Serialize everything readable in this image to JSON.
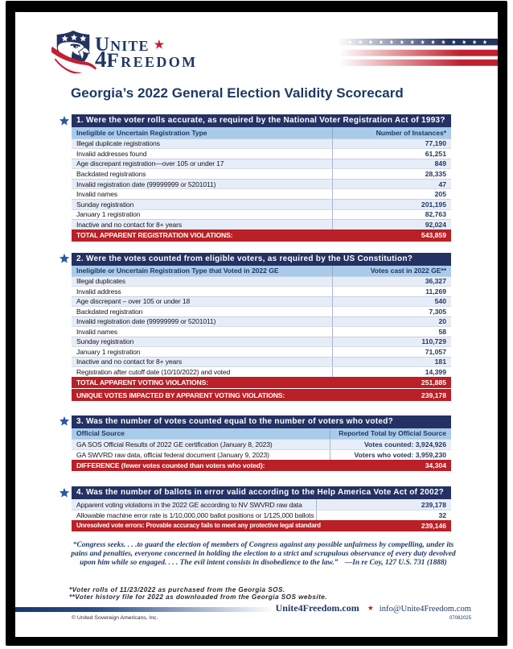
{
  "title": "Georgia’s 2022 General Election Validity Scorecard",
  "logo": {
    "word1": "Unite",
    "star": "★",
    "digit": "4",
    "word2": "Freedom"
  },
  "colors": {
    "navy": "#243263",
    "red_bar": "#b92027",
    "header_blue": "#a9cbea",
    "stripe_blue": "#e7edf8",
    "accent_star_blue": "#2b57a5",
    "logo_red": "#c02231"
  },
  "sections": [
    {
      "heading": "1. Were the voter rolls accurate, as required by the National Voter Registration Act of 1993?",
      "col1": "Ineligible or Uncertain Registration Type",
      "col2": "Number of Instances*",
      "rows": [
        {
          "label": "Illegal duplicate registrations",
          "value": "77,190"
        },
        {
          "label": "Invalid addresses found",
          "value": "61,251"
        },
        {
          "label": "Age discrepant registration—over 105 or under 17",
          "value": "849"
        },
        {
          "label": "Backdated registrations",
          "value": "28,335"
        },
        {
          "label": "Invalid registration date (99999999 or 5201011)",
          "value": "47"
        },
        {
          "label": "Invalid names",
          "value": "205"
        },
        {
          "label": "Sunday registration",
          "value": "201,195"
        },
        {
          "label": "January 1 registration",
          "value": "82,763"
        },
        {
          "label": "Inactive and no contact for 8+ years",
          "value": "92,024"
        }
      ],
      "totals": [
        {
          "label": "TOTAL APPARENT REGISTRATION VIOLATIONS:",
          "value": "543,859"
        }
      ]
    },
    {
      "heading": "2. Were the votes counted from eligible voters, as required by the US Constitution?",
      "col1": "Ineligible or Uncertain Registration Type that Voted in 2022 GE",
      "col2": "Votes cast in 2022 GE**",
      "rows": [
        {
          "label": "Illegal duplicates",
          "value": "36,327"
        },
        {
          "label": "Invalid address",
          "value": "11,269"
        },
        {
          "label": "Age discrepant – over 105 or under 18",
          "value": "540"
        },
        {
          "label": "Backdated registration",
          "value": "7,305"
        },
        {
          "label": "Invalid registration date (99999999 or 5201011)",
          "value": "20"
        },
        {
          "label": "Invalid names",
          "value": "58"
        },
        {
          "label": "Sunday registration",
          "value": "110,729"
        },
        {
          "label": "January 1 registration",
          "value": "71,057"
        },
        {
          "label": "Inactive and no contact for 8+ years",
          "value": "181"
        },
        {
          "label": "Registration after cutoff date (10/10/2022) and voted",
          "value": "14,399"
        }
      ],
      "totals": [
        {
          "label": "TOTAL APPARENT VOTING VIOLATIONS:",
          "value": "251,885"
        },
        {
          "label": "UNIQUE VOTES IMPACTED BY APPARENT VOTING VIOLATIONS:",
          "value": "239,178"
        }
      ]
    },
    {
      "heading": "3. Was the number of votes counted equal to the number of voters who voted?",
      "col1": "Official Source",
      "col2": "Reported Total by Official Source",
      "rows": [
        {
          "label": "GA SOS Official Results of 2022 GE certification  (January 8, 2023)",
          "value": "Votes counted:  3,924,926"
        },
        {
          "label": "GA SWVRD raw data, official federal document (January 9, 2023)",
          "value": "Voters who voted:  3,959,230"
        }
      ],
      "totals": [
        {
          "label": "DIFFERENCE (fewer votes counted than voters who voted):",
          "value": "34,304"
        }
      ]
    },
    {
      "heading": "4. Was the number of ballots in error valid according to the Help America Vote Act of 2002?",
      "rows": [
        {
          "label": "Apparent voting violations in the 2022 GE according to NV SWVRD raw data",
          "value": "239,178"
        },
        {
          "label": "Allowable machine error rate is 1/10,000,000 ballot positions or 1/125,000 ballots",
          "value": "32"
        }
      ],
      "totals": [
        {
          "label": "Unresolved vote errors: Provable accuracy fails to meet any protective legal standard",
          "value": "239,146"
        }
      ]
    }
  ],
  "quote": {
    "text": "“Congress seeks. . . .to guard the election of members of Congress against any possible unfairness by compelling, under its pains and penalties, everyone concerned in holding the election to a strict and scrupulous observance of every duty devolved upon him while so engaged. . . . The evil intent consists in disobedience to the law.”",
    "citation": "—In re Coy, 127 U.S. 731 (1888)"
  },
  "footnotes": {
    "line1": "*Voter rolls of 11/23/2022 as purchased from the Georgia SOS.",
    "line2": "**Voter history file for 2022 as downloaded from the Georgia SOS website."
  },
  "footer": {
    "site": "Unite4Freedom.com",
    "star": "★",
    "email": "info@Unite4Freedom.com",
    "copyright": "© United Sovereign Americans, Inc.",
    "code": "07082025"
  }
}
